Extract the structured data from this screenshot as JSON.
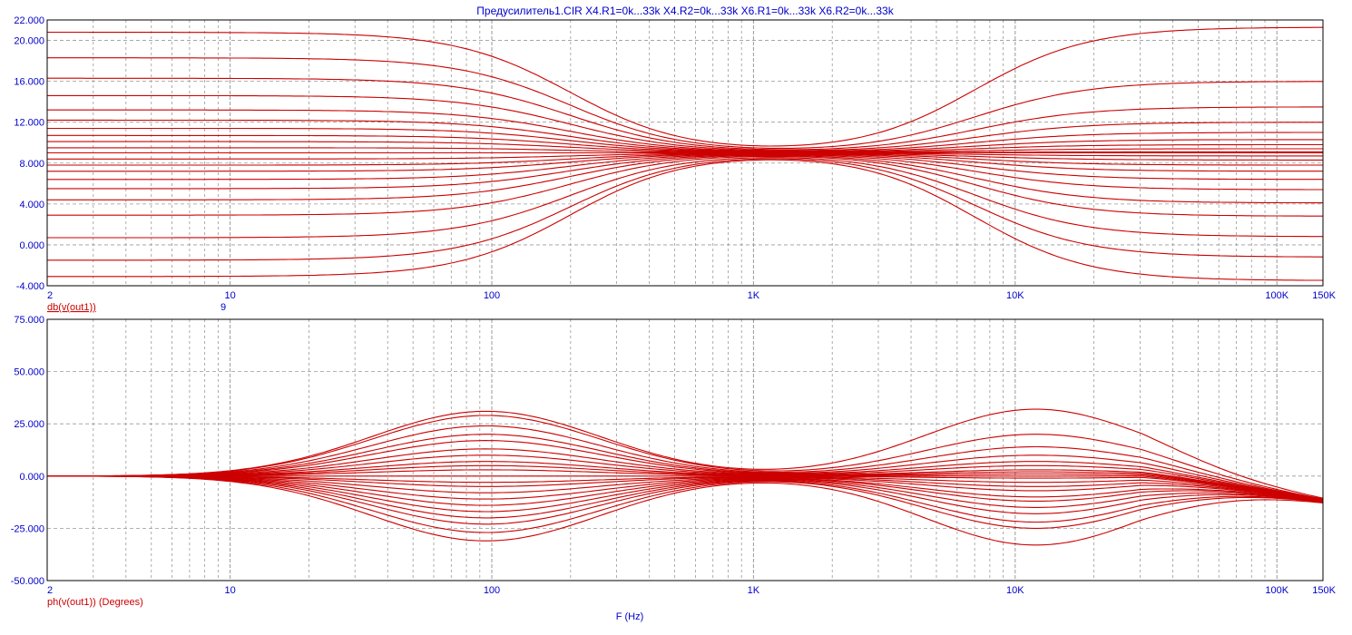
{
  "title": "Предусилитель1.CIR X4.R1=0k...33k X4.R2=0k...33k X6.R1=0k...33k X6.R2=0k...33k",
  "x_axis_label": "F (Hz)",
  "colors": {
    "trace": "#cc0000",
    "text": "#0000cc",
    "grid": "#999999",
    "frame": "#000000"
  },
  "chart_data": [
    {
      "type": "line",
      "name": "magnitude",
      "trace_label": "db(v(out1))",
      "trace_note": "9",
      "x_scale": "log",
      "xlim": [
        2,
        150000
      ],
      "ylim": [
        -4,
        22
      ],
      "x_tick_labels": [
        "2",
        "10",
        "100",
        "1K",
        "10K",
        "100K",
        "150K"
      ],
      "y_tick_labels": [
        "22.000",
        "20.000",
        "16.000",
        "12.000",
        "8.000",
        "4.000",
        "0.000",
        "-4.000"
      ],
      "grid": true,
      "curve_model": {
        "center_db": 9,
        "bass_corner_hz": 200,
        "treble_corner_hz": 7000,
        "bass_gain_db": [
          11.8,
          9.3,
          7.3,
          5.6,
          4.2,
          3.2,
          2.4,
          1.7,
          1.1,
          0.5,
          0,
          -0.6,
          -1.2,
          -1.8,
          -2.6,
          -3.5,
          -4.6,
          -6.1,
          -8.3,
          -10.5,
          -12.1
        ],
        "treble_gain_db": [
          12.3,
          7.0,
          4.5,
          3.0,
          2.0,
          1.3,
          0.8,
          0.4,
          0.1,
          0,
          -0.3,
          -0.7,
          -1.2,
          -1.8,
          -2.6,
          -3.6,
          -4.9,
          -6.2,
          -8.2,
          -10.2,
          -12.5
        ]
      }
    },
    {
      "type": "line",
      "name": "phase",
      "trace_label": "ph(v(out1)) (Degrees)",
      "x_scale": "log",
      "xlim": [
        2,
        150000
      ],
      "ylim": [
        -50,
        75
      ],
      "x_tick_labels": [
        "2",
        "10",
        "100",
        "1K",
        "10K",
        "100K",
        "150K"
      ],
      "y_tick_labels": [
        "75.000",
        "50.000",
        "25.000",
        "0.000",
        "-25.000",
        "-50.000"
      ],
      "grid": true,
      "curve_model": {
        "bass_peak_deg": [
          31,
          29,
          24,
          20,
          17,
          13,
          10,
          7,
          5,
          3,
          0,
          -3,
          -5,
          -8,
          -11,
          -14,
          -17,
          -20,
          -23,
          -27,
          -31
        ],
        "bass_peak_hz": 95,
        "treble_peak_deg": [
          32,
          20,
          14,
          10,
          7,
          5,
          3,
          2,
          1,
          0,
          -1,
          -3,
          -5,
          -7,
          -10,
          -12,
          -15,
          -18,
          -22,
          -25,
          -33
        ],
        "treble_peak_hz": 12000
      }
    }
  ]
}
